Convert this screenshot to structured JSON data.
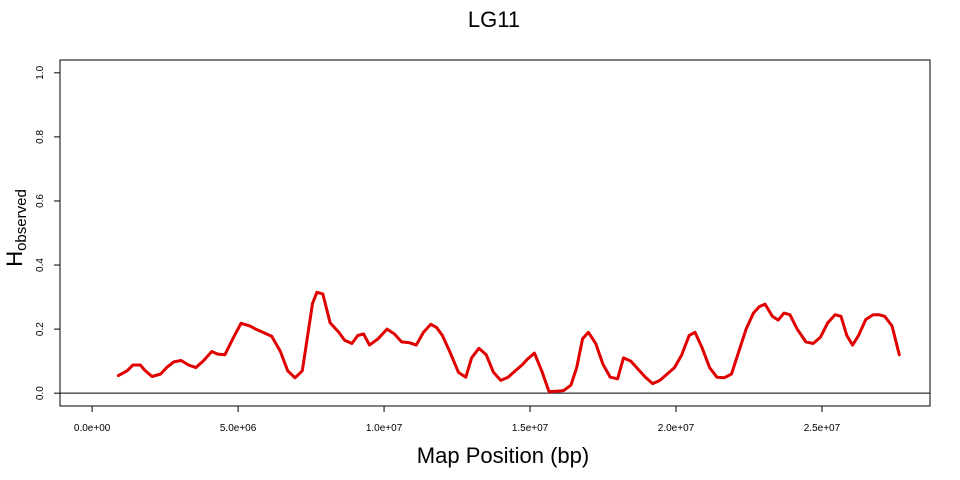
{
  "chart_data": {
    "type": "line",
    "title": "LG11",
    "xlabel": "Map Position (bp)",
    "ylabel": "H",
    "ylabel_subscript": "observed",
    "xlim": [
      -1100000,
      28700000
    ],
    "ylim": [
      -0.04,
      1.04
    ],
    "x_ticks": [
      0,
      5000000,
      10000000,
      15000000,
      20000000,
      25000000
    ],
    "x_tick_labels": [
      "0.0e+00",
      "5.0e+06",
      "1.0e+07",
      "1.5e+07",
      "2.0e+07",
      "2.5e+07"
    ],
    "y_ticks": [
      0.0,
      0.2,
      0.4,
      0.6,
      0.8,
      1.0
    ],
    "y_tick_labels": [
      "0.0",
      "0.2",
      "0.4",
      "0.6",
      "0.8",
      "1.0"
    ],
    "hline": 0.0,
    "grid": false,
    "series": [
      {
        "color": "#e00000",
        "x": [
          900000,
          1200000,
          1400000,
          1650000,
          1800000,
          2050000,
          2350000,
          2550000,
          2800000,
          3050000,
          3300000,
          3550000,
          3800000,
          4100000,
          4300000,
          4550000,
          4850000,
          5100000,
          5400000,
          5650000,
          5900000,
          6150000,
          6450000,
          6700000,
          6950000,
          7200000,
          7550000,
          7700000,
          7900000,
          8150000,
          8450000,
          8650000,
          8900000,
          9100000,
          9300000,
          9500000,
          9800000,
          10100000,
          10350000,
          10600000,
          10850000,
          11100000,
          11350000,
          11600000,
          11800000,
          12000000,
          12250000,
          12550000,
          12800000,
          13000000,
          13250000,
          13500000,
          13750000,
          14000000,
          14250000,
          14500000,
          14750000,
          14900000,
          15150000,
          15400000,
          15650000,
          15900000,
          16150000,
          16400000,
          16600000,
          16800000,
          17000000,
          17250000,
          17500000,
          17750000,
          18000000,
          18200000,
          18450000,
          18700000,
          18950000,
          19200000,
          19450000,
          19700000,
          19950000,
          20200000,
          20450000,
          20650000,
          20900000,
          21150000,
          21400000,
          21650000,
          21900000,
          22150000,
          22400000,
          22650000,
          22850000,
          23050000,
          23300000,
          23500000,
          23700000,
          23900000,
          24150000,
          24450000,
          24700000,
          24950000,
          25200000,
          25450000,
          25650000,
          25850000,
          26050000,
          26250000,
          26500000,
          26750000,
          26950000,
          27150000,
          27400000,
          27650000
        ],
        "y": [
          0.055,
          0.07,
          0.088,
          0.088,
          0.072,
          0.052,
          0.06,
          0.08,
          0.098,
          0.102,
          0.088,
          0.08,
          0.1,
          0.13,
          0.122,
          0.12,
          0.175,
          0.218,
          0.21,
          0.198,
          0.188,
          0.178,
          0.13,
          0.07,
          0.048,
          0.07,
          0.28,
          0.315,
          0.31,
          0.22,
          0.19,
          0.165,
          0.155,
          0.18,
          0.185,
          0.15,
          0.17,
          0.2,
          0.185,
          0.16,
          0.158,
          0.15,
          0.19,
          0.215,
          0.205,
          0.18,
          0.13,
          0.065,
          0.05,
          0.11,
          0.14,
          0.12,
          0.065,
          0.04,
          0.05,
          0.07,
          0.09,
          0.105,
          0.125,
          0.07,
          0.005,
          0.006,
          0.008,
          0.025,
          0.08,
          0.17,
          0.19,
          0.155,
          0.09,
          0.05,
          0.045,
          0.11,
          0.1,
          0.075,
          0.05,
          0.03,
          0.04,
          0.06,
          0.08,
          0.12,
          0.18,
          0.19,
          0.14,
          0.08,
          0.05,
          0.048,
          0.06,
          0.13,
          0.2,
          0.25,
          0.27,
          0.278,
          0.24,
          0.228,
          0.25,
          0.245,
          0.2,
          0.16,
          0.155,
          0.175,
          0.22,
          0.245,
          0.24,
          0.18,
          0.15,
          0.18,
          0.23,
          0.245,
          0.245,
          0.24,
          0.21,
          0.12
        ]
      }
    ]
  }
}
